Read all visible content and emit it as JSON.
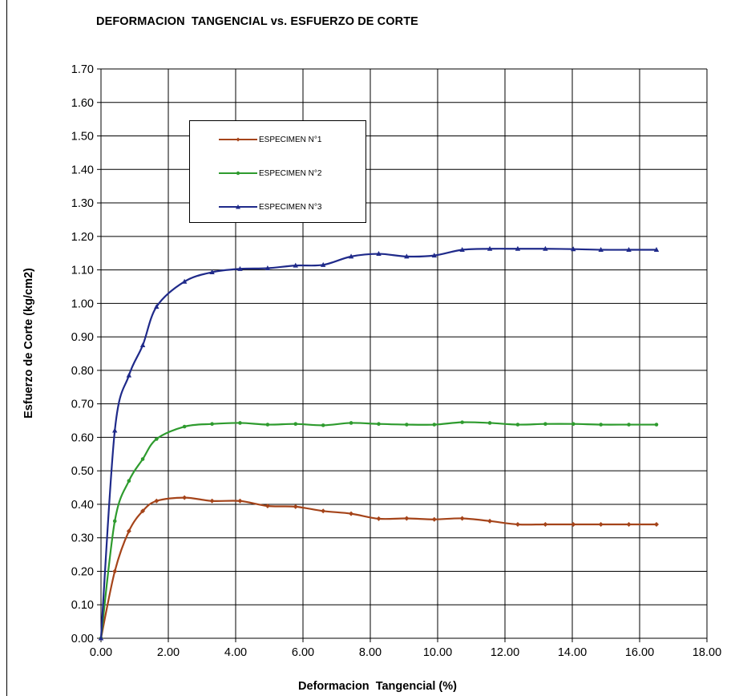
{
  "chart_data": {
    "type": "line",
    "title": "DEFORMACION  TANGENCIAL vs. ESFUERZO DE CORTE",
    "xlabel": "Deformacion  Tangencial (%)",
    "ylabel": "Esfuerzo de Corte (kg/cm2)",
    "xlim": [
      0,
      18
    ],
    "ylim": [
      0,
      1.7
    ],
    "x_ticks": [
      "0.00",
      "2.00",
      "4.00",
      "6.00",
      "8.00",
      "10.00",
      "12.00",
      "14.00",
      "16.00",
      "18.00"
    ],
    "y_ticks": [
      "0.00",
      "0.10",
      "0.20",
      "0.30",
      "0.40",
      "0.50",
      "0.60",
      "0.70",
      "0.80",
      "0.90",
      "1.00",
      "1.10",
      "1.20",
      "1.30",
      "1.40",
      "1.50",
      "1.60",
      "1.70"
    ],
    "grid": true,
    "legend_position": "upper-left inside plot",
    "series": [
      {
        "name": "ESPECIMEN N°1",
        "color": "#A5441A",
        "marker": "diamond",
        "x": [
          0,
          0.41,
          0.83,
          1.24,
          1.65,
          2.48,
          3.3,
          4.13,
          4.95,
          5.78,
          6.6,
          7.43,
          8.25,
          9.08,
          9.9,
          10.73,
          11.55,
          12.38,
          13.2,
          14.03,
          14.85,
          15.68,
          16.5
        ],
        "y": [
          0,
          0.2,
          0.32,
          0.38,
          0.41,
          0.42,
          0.41,
          0.41,
          0.395,
          0.393,
          0.38,
          0.372,
          0.357,
          0.358,
          0.355,
          0.358,
          0.35,
          0.34,
          0.34,
          0.34,
          0.34,
          0.34,
          0.34
        ]
      },
      {
        "name": "ESPECIMEN N°2",
        "color": "#2E9B2E",
        "marker": "circle",
        "x": [
          0,
          0.41,
          0.83,
          1.24,
          1.65,
          2.48,
          3.3,
          4.13,
          4.95,
          5.78,
          6.6,
          7.43,
          8.25,
          9.08,
          9.9,
          10.73,
          11.55,
          12.38,
          13.2,
          14.03,
          14.85,
          15.68,
          16.5
        ],
        "y": [
          0,
          0.35,
          0.47,
          0.535,
          0.595,
          0.632,
          0.64,
          0.643,
          0.638,
          0.64,
          0.636,
          0.643,
          0.64,
          0.638,
          0.638,
          0.645,
          0.643,
          0.638,
          0.64,
          0.64,
          0.638,
          0.638,
          0.638
        ]
      },
      {
        "name": "ESPECIMEN N°3",
        "color": "#1F2A8A",
        "marker": "triangle",
        "x": [
          0,
          0.41,
          0.83,
          1.24,
          1.65,
          2.48,
          3.3,
          4.13,
          4.95,
          5.78,
          6.6,
          7.43,
          8.25,
          9.08,
          9.9,
          10.73,
          11.55,
          12.38,
          13.2,
          14.03,
          14.85,
          15.68,
          16.5
        ],
        "y": [
          0,
          0.62,
          0.785,
          0.875,
          0.99,
          1.065,
          1.093,
          1.103,
          1.105,
          1.113,
          1.115,
          1.14,
          1.148,
          1.14,
          1.143,
          1.16,
          1.163,
          1.163,
          1.163,
          1.162,
          1.16,
          1.16,
          1.16
        ]
      }
    ]
  }
}
